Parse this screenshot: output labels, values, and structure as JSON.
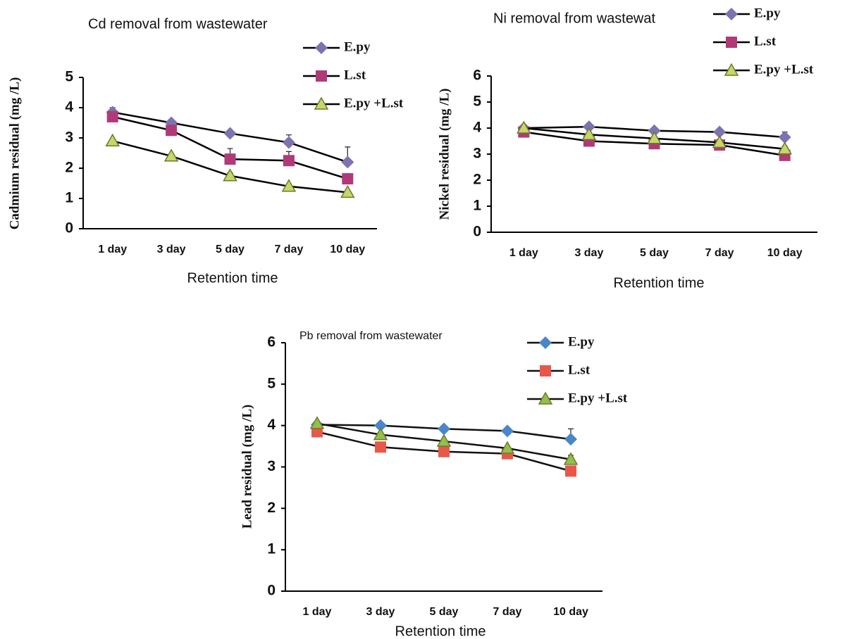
{
  "chart_data": [
    {
      "type": "line",
      "title": "Cd removal from wastewater",
      "y_label": "Cadmium residual (mg /L)",
      "x_label": "Retention time",
      "categories": [
        "1 day",
        "3 day",
        "5 day",
        "7 day",
        "10 day"
      ],
      "ylim": [
        0,
        5
      ],
      "yticks": [
        0,
        1,
        2,
        3,
        4,
        5
      ],
      "line_color": "#000000",
      "series": [
        {
          "name": "E.py",
          "color": "#7b74b0",
          "marker": "diamond",
          "values": [
            3.85,
            3.5,
            3.15,
            2.85,
            2.2
          ],
          "errors": [
            0.15,
            0.05,
            0.1,
            0.25,
            0.5
          ]
        },
        {
          "name": "L.st",
          "color": "#b03a78",
          "marker": "square",
          "values": [
            3.7,
            3.25,
            2.3,
            2.25,
            1.65
          ],
          "errors": [
            0.1,
            0.1,
            0.35,
            0.3,
            0.15
          ]
        },
        {
          "name": "E.py +L.st",
          "color": "#c7d66a",
          "marker": "triangle",
          "values": [
            2.9,
            2.4,
            1.75,
            1.4,
            1.2
          ],
          "errors": [
            0.05,
            0.05,
            0.1,
            0.05,
            0.05
          ]
        }
      ]
    },
    {
      "type": "line",
      "title": "Ni removal from wastewat",
      "y_label": "Nickel residual (mg /L)",
      "x_label": "Retention time",
      "categories": [
        "1 day",
        "3 day",
        "5 day",
        "7 day",
        "10 day"
      ],
      "ylim": [
        0,
        6
      ],
      "yticks": [
        0,
        1,
        2,
        3,
        4,
        5,
        6
      ],
      "line_color": "#000000",
      "series": [
        {
          "name": "E.py",
          "color": "#7b74b0",
          "marker": "diamond",
          "values": [
            4.0,
            4.05,
            3.9,
            3.85,
            3.65
          ],
          "errors": [
            0.05,
            0.05,
            0.05,
            0.05,
            0.2
          ]
        },
        {
          "name": "L.st",
          "color": "#b03a78",
          "marker": "square",
          "values": [
            3.85,
            3.5,
            3.4,
            3.35,
            2.95
          ],
          "errors": [
            0.05,
            0.05,
            0.05,
            0.05,
            0.1
          ]
        },
        {
          "name": "E.py +L.st",
          "color": "#c7d66a",
          "marker": "triangle",
          "values": [
            4.0,
            3.75,
            3.6,
            3.45,
            3.2
          ],
          "errors": [
            0.05,
            0.05,
            0.05,
            0.05,
            0.1
          ]
        }
      ]
    },
    {
      "type": "line",
      "title": "Pb removal from wastewater",
      "y_label": "Lead residual  (mg /L)",
      "x_label": "Retention time",
      "categories": [
        "1 day",
        "3 day",
        "5 day",
        "7 day",
        "10 day"
      ],
      "ylim": [
        0,
        6
      ],
      "yticks": [
        0,
        1,
        2,
        3,
        4,
        5,
        6
      ],
      "line_color": "#111111",
      "series": [
        {
          "name": "E.py",
          "color": "#4a86c8",
          "marker": "diamond",
          "values": [
            4.02,
            4.0,
            3.92,
            3.87,
            3.67
          ],
          "errors": [
            0.05,
            0.05,
            0.05,
            0.05,
            0.25
          ]
        },
        {
          "name": "L.st",
          "color": "#e8584a",
          "marker": "square",
          "values": [
            3.85,
            3.48,
            3.37,
            3.32,
            2.9
          ],
          "errors": [
            0.05,
            0.05,
            0.05,
            0.05,
            0.1
          ]
        },
        {
          "name": "E.py +L.st",
          "color": "#92c04a",
          "marker": "triangle",
          "values": [
            4.05,
            3.78,
            3.62,
            3.45,
            3.18
          ],
          "errors": [
            0.05,
            0.05,
            0.05,
            0.05,
            0.1
          ]
        }
      ]
    }
  ]
}
